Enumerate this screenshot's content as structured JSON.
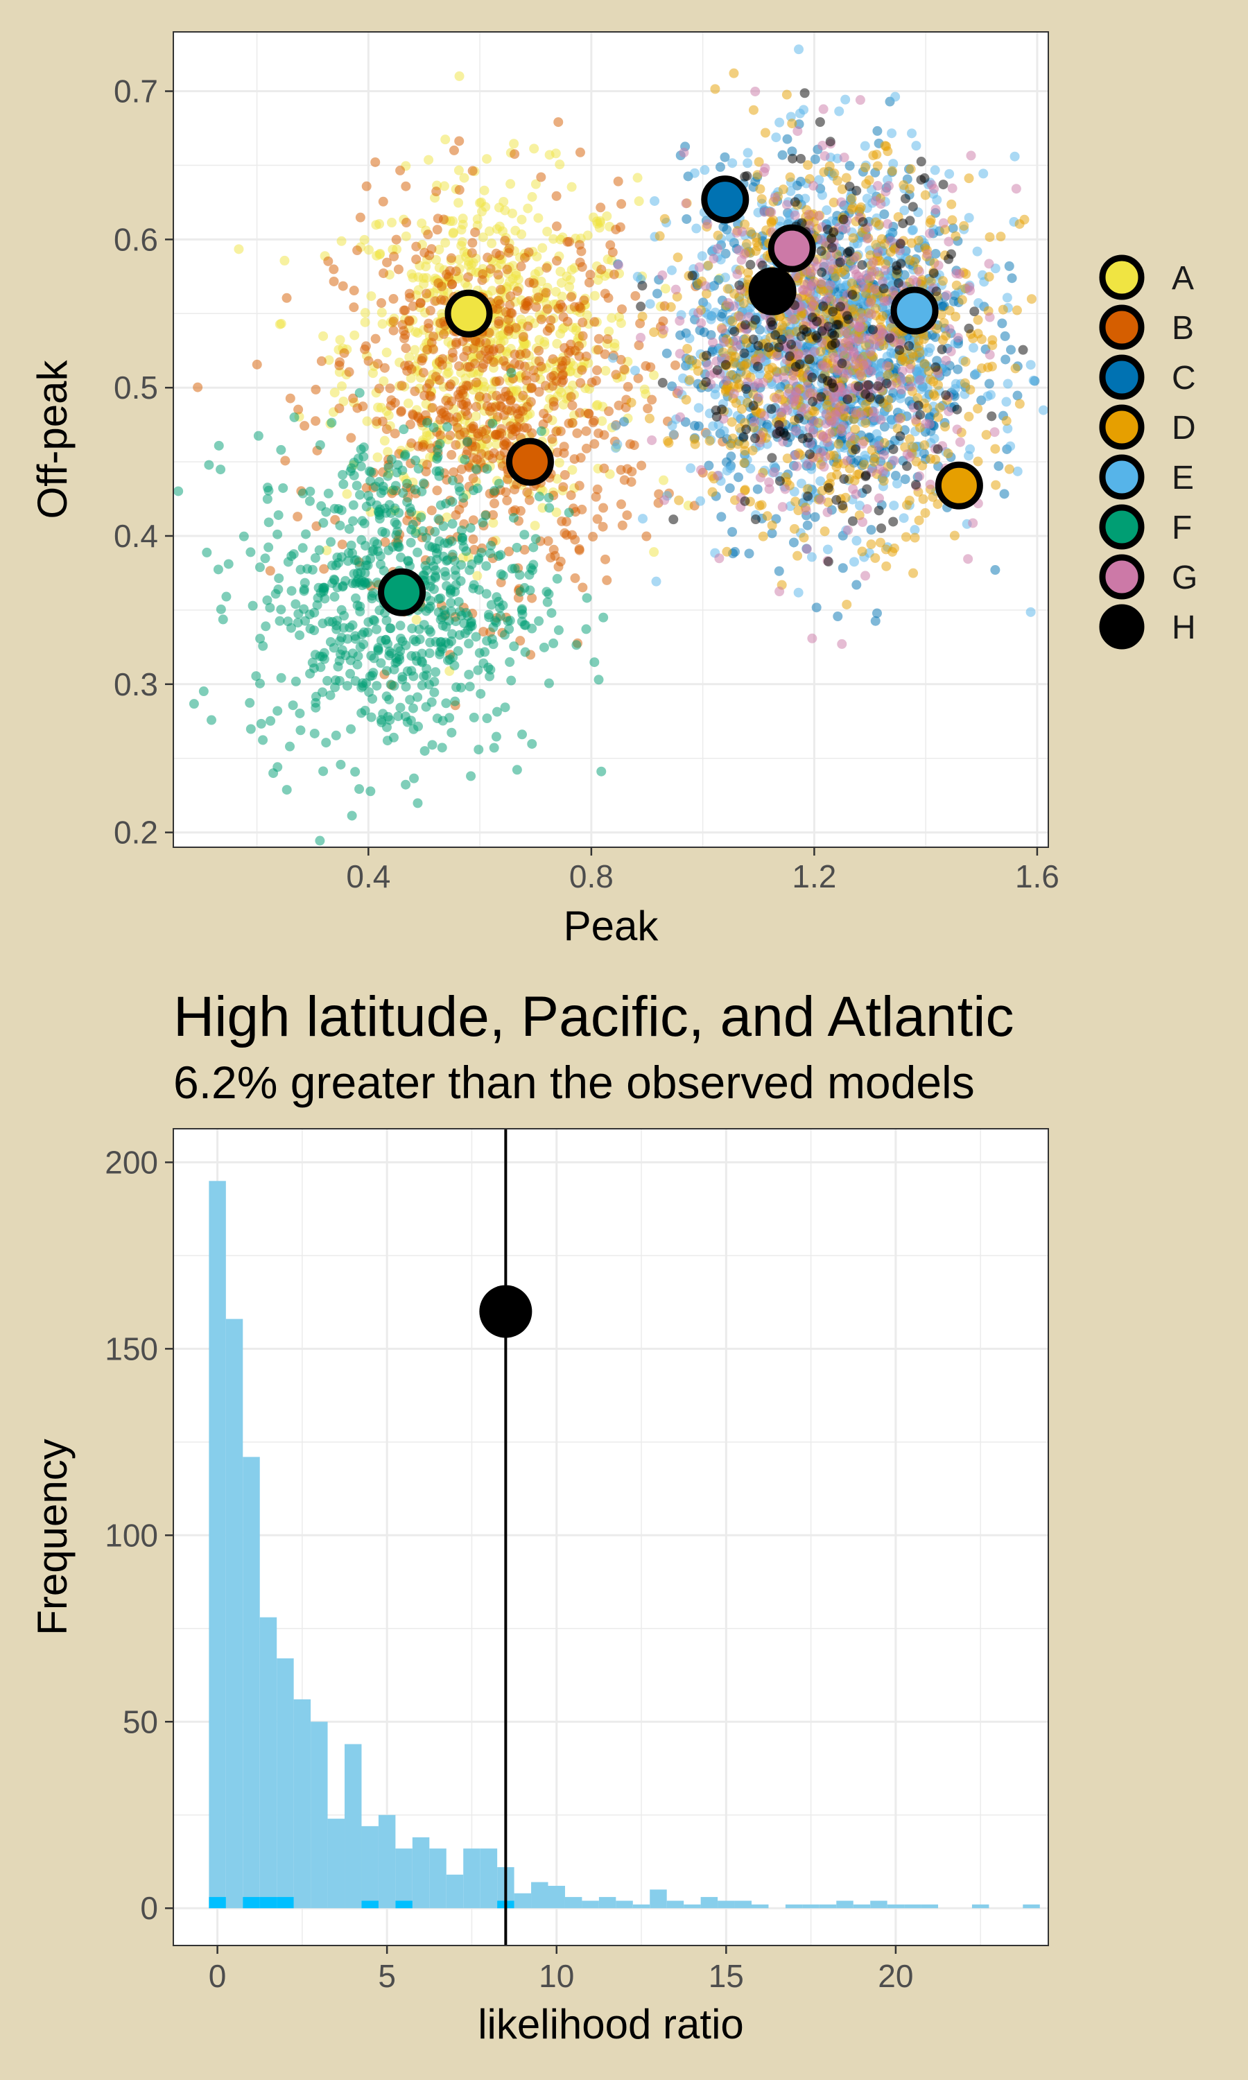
{
  "colors": {
    "background": "#e3d8b8",
    "panel": "#ffffff",
    "grid": "#ebebeb",
    "panel_border": "#333333",
    "A": "#F0E442",
    "B": "#D55E00",
    "C": "#0072B2",
    "D": "#E69F00",
    "E": "#56B4E9",
    "F": "#009E73",
    "G": "#CC79A7",
    "H": "#000000",
    "histogram_fill": "#87CEEB",
    "histogram_highlight": "#00BFFF"
  },
  "chart_data": [
    {
      "type": "scatter",
      "title": "",
      "xlabel": "Peak",
      "ylabel": "Off-peak",
      "xlim": [
        0.05,
        1.62
      ],
      "ylim": [
        0.19,
        0.74
      ],
      "xticks": [
        0.4,
        0.8,
        1.2,
        1.6
      ],
      "xtick_labels": [
        "0.4",
        "0.8",
        "1.2",
        "1.6"
      ],
      "yticks": [
        0.2,
        0.3,
        0.4,
        0.5,
        0.6,
        0.7
      ],
      "ytick_labels": [
        "0.2",
        "0.3",
        "0.4",
        "0.5",
        "0.6",
        "0.7"
      ],
      "grid": true,
      "legend_position": "right",
      "point_alpha": 0.5,
      "series": [
        {
          "name": "A",
          "center": [
            0.58,
            0.55
          ],
          "spread": [
            0.13,
            0.055
          ],
          "count": 700
        },
        {
          "name": "B",
          "center": [
            0.69,
            0.45
          ],
          "spread": [
            0.14,
            0.065
          ],
          "count": 700
        },
        {
          "name": "C",
          "center": [
            1.04,
            0.627
          ],
          "spread": [
            0.13,
            0.06
          ],
          "count": 700
        },
        {
          "name": "D",
          "center": [
            1.46,
            0.434
          ],
          "spread": [
            0.14,
            0.06
          ],
          "count": 700
        },
        {
          "name": "E",
          "center": [
            1.38,
            0.552
          ],
          "spread": [
            0.14,
            0.06
          ],
          "count": 700
        },
        {
          "name": "F",
          "center": [
            0.46,
            0.362
          ],
          "spread": [
            0.13,
            0.055
          ],
          "count": 700
        },
        {
          "name": "G",
          "center": [
            1.16,
            0.594
          ],
          "spread": [
            0.13,
            0.06
          ],
          "count": 650
        },
        {
          "name": "H",
          "center": [
            1.125,
            0.565
          ],
          "spread": [
            0.13,
            0.06
          ],
          "count": 650
        }
      ],
      "cloud_centers": {
        "A": [
          0.62,
          0.53
        ],
        "B": [
          0.62,
          0.49
        ],
        "C": [
          1.23,
          0.53
        ],
        "D": [
          1.23,
          0.53
        ],
        "E": [
          1.23,
          0.53
        ],
        "F": [
          0.45,
          0.36
        ],
        "G": [
          1.24,
          0.53
        ],
        "H": [
          1.22,
          0.53
        ]
      }
    },
    {
      "type": "bar",
      "title": "High latitude, Pacific, and Atlantic",
      "subtitle": "6.2% greater than the observed models",
      "xlabel": "likelihood ratio",
      "ylabel": "Frequency",
      "xlim": [
        -1.3,
        24.5
      ],
      "ylim": [
        -10,
        209
      ],
      "xticks": [
        0,
        5,
        10,
        15,
        20
      ],
      "xtick_labels": [
        "0",
        "5",
        "10",
        "15",
        "20"
      ],
      "yticks": [
        0,
        50,
        100,
        150,
        200
      ],
      "ytick_labels": [
        "0",
        "50",
        "100",
        "150",
        "200"
      ],
      "grid": true,
      "bin_width": 0.5,
      "bin_start": -0.25,
      "values": [
        195,
        158,
        121,
        78,
        67,
        56,
        50,
        24,
        44,
        22,
        25,
        16,
        19,
        16,
        9,
        16,
        16,
        11,
        4,
        7,
        6,
        3,
        2,
        3,
        2,
        1,
        5,
        2,
        1,
        3,
        2,
        2,
        1,
        0,
        1,
        1,
        1,
        2,
        1,
        2,
        1,
        1,
        1,
        0,
        0,
        1,
        0,
        0,
        1
      ],
      "highlight_values": [
        3,
        0,
        3,
        3,
        3,
        0,
        0,
        0,
        0,
        2,
        0,
        2,
        0,
        0,
        0,
        0,
        0,
        2,
        0,
        0,
        0,
        0,
        0,
        0,
        0,
        0,
        0,
        0,
        0,
        0,
        0,
        0,
        0,
        0,
        0,
        0,
        0,
        0,
        0,
        0,
        0,
        0,
        0,
        0,
        0,
        0,
        0,
        0,
        0
      ],
      "observed_value": 8.5,
      "observed_point": [
        8.5,
        160
      ]
    }
  ]
}
